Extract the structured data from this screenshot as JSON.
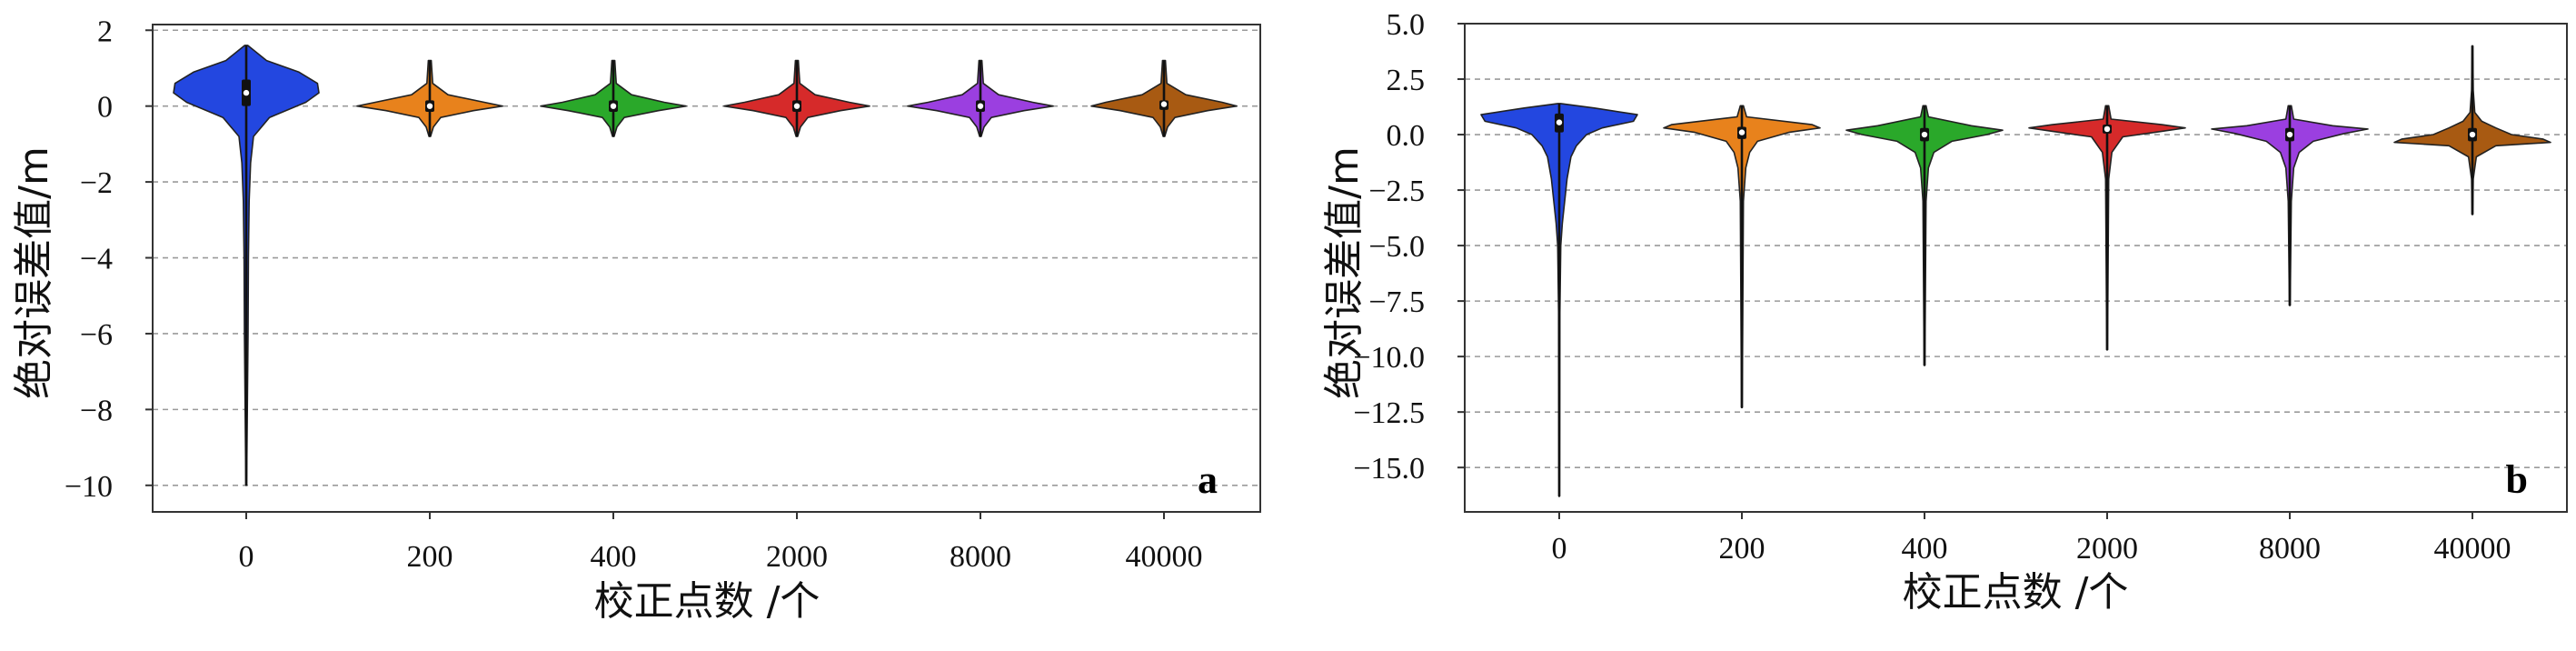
{
  "chart_data": [
    {
      "panel": "a",
      "type": "violin",
      "xlabel": "校正点数 /个",
      "ylabel": "绝对误差值/m",
      "ylim": [
        -10.7,
        2.15
      ],
      "yticks": [
        2,
        0,
        -2,
        -4,
        -6,
        -8,
        -10
      ],
      "ytick_labels": [
        "2",
        "0",
        "−2",
        "−4",
        "−6",
        "−8",
        "−10"
      ],
      "grid": "y, dashed",
      "categories": [
        "0",
        "200",
        "400",
        "2000",
        "8000",
        "40000"
      ],
      "series": [
        {
          "name": "0",
          "color": "#2347e0",
          "min": -10.0,
          "max": 1.6,
          "q1": 0.0,
          "median": 0.35,
          "q3": 0.7,
          "density": [
            [
              1.6,
              0.02
            ],
            [
              1.2,
              0.28
            ],
            [
              0.9,
              0.72
            ],
            [
              0.6,
              0.98
            ],
            [
              0.35,
              1.0
            ],
            [
              0.1,
              0.82
            ],
            [
              -0.3,
              0.32
            ],
            [
              -0.8,
              0.1
            ],
            [
              -1.5,
              0.06
            ],
            [
              -2.5,
              0.04
            ],
            [
              -4.0,
              0.03
            ],
            [
              -6.0,
              0.025
            ],
            [
              -8.0,
              0.015
            ],
            [
              -10.0,
              0.005
            ]
          ]
        },
        {
          "name": "200",
          "color": "#e8821c",
          "min": -0.8,
          "max": 1.2,
          "q1": -0.15,
          "median": 0.0,
          "q3": 0.15,
          "density": [
            [
              1.2,
              0.02
            ],
            [
              0.6,
              0.04
            ],
            [
              0.3,
              0.25
            ],
            [
              0.1,
              0.75
            ],
            [
              0.0,
              1.0
            ],
            [
              -0.12,
              0.6
            ],
            [
              -0.3,
              0.15
            ],
            [
              -0.55,
              0.05
            ],
            [
              -0.8,
              0.01
            ]
          ]
        },
        {
          "name": "400",
          "color": "#2aa82a",
          "min": -0.8,
          "max": 1.2,
          "q1": -0.15,
          "median": 0.0,
          "q3": 0.15,
          "density": [
            [
              1.2,
              0.02
            ],
            [
              0.6,
              0.04
            ],
            [
              0.3,
              0.25
            ],
            [
              0.1,
              0.7
            ],
            [
              0.0,
              1.0
            ],
            [
              -0.12,
              0.62
            ],
            [
              -0.3,
              0.15
            ],
            [
              -0.55,
              0.05
            ],
            [
              -0.8,
              0.01
            ]
          ]
        },
        {
          "name": "2000",
          "color": "#d62a2a",
          "min": -0.8,
          "max": 1.2,
          "q1": -0.15,
          "median": 0.0,
          "q3": 0.15,
          "density": [
            [
              1.2,
              0.02
            ],
            [
              0.6,
              0.04
            ],
            [
              0.3,
              0.25
            ],
            [
              0.1,
              0.72
            ],
            [
              0.0,
              1.0
            ],
            [
              -0.12,
              0.6
            ],
            [
              -0.3,
              0.15
            ],
            [
              -0.55,
              0.05
            ],
            [
              -0.8,
              0.01
            ]
          ]
        },
        {
          "name": "8000",
          "color": "#9b3fe0",
          "min": -0.8,
          "max": 1.2,
          "q1": -0.15,
          "median": 0.0,
          "q3": 0.15,
          "density": [
            [
              1.2,
              0.02
            ],
            [
              0.6,
              0.04
            ],
            [
              0.3,
              0.25
            ],
            [
              0.1,
              0.72
            ],
            [
              0.0,
              1.0
            ],
            [
              -0.12,
              0.6
            ],
            [
              -0.3,
              0.15
            ],
            [
              -0.55,
              0.05
            ],
            [
              -0.8,
              0.01
            ]
          ]
        },
        {
          "name": "40000",
          "color": "#a85a12",
          "min": -0.8,
          "max": 1.2,
          "q1": -0.1,
          "median": 0.05,
          "q3": 0.15,
          "density": [
            [
              1.2,
              0.02
            ],
            [
              0.6,
              0.04
            ],
            [
              0.3,
              0.3
            ],
            [
              0.1,
              0.8
            ],
            [
              0.0,
              1.0
            ],
            [
              -0.12,
              0.6
            ],
            [
              -0.3,
              0.15
            ],
            [
              -0.55,
              0.05
            ],
            [
              -0.8,
              0.01
            ]
          ]
        }
      ]
    },
    {
      "panel": "b",
      "type": "violin",
      "xlabel": "校正点数 /个",
      "ylabel": "绝对误差值/m",
      "ylim": [
        -17.0,
        5.0
      ],
      "yticks": [
        5.0,
        2.5,
        0.0,
        -2.5,
        -5.0,
        -7.5,
        -10.0,
        -12.5,
        -15.0
      ],
      "ytick_labels": [
        "5.0",
        "2.5",
        "0.0",
        "−2.5",
        "−5.0",
        "−7.5",
        "−10.0",
        "−12.5",
        "−15.0"
      ],
      "grid": "y, dashed",
      "categories": [
        "0",
        "200",
        "400",
        "2000",
        "8000",
        "40000"
      ],
      "series": [
        {
          "name": "0",
          "color": "#2347e0",
          "min": -16.3,
          "max": 1.4,
          "q1": 0.1,
          "median": 0.55,
          "q3": 0.95,
          "density": [
            [
              1.4,
              0.02
            ],
            [
              1.2,
              0.45
            ],
            [
              0.9,
              1.0
            ],
            [
              0.6,
              0.95
            ],
            [
              0.3,
              0.55
            ],
            [
              0.0,
              0.35
            ],
            [
              -0.5,
              0.22
            ],
            [
              -1.0,
              0.15
            ],
            [
              -2.0,
              0.1
            ],
            [
              -3.0,
              0.07
            ],
            [
              -4.0,
              0.04
            ],
            [
              -5.0,
              0.02
            ],
            [
              -8.0,
              0.008
            ],
            [
              -16.3,
              0.003
            ]
          ]
        },
        {
          "name": "200",
          "color": "#e8821c",
          "min": -12.3,
          "max": 1.3,
          "q1": -0.2,
          "median": 0.1,
          "q3": 0.35,
          "density": [
            [
              1.3,
              0.02
            ],
            [
              0.8,
              0.06
            ],
            [
              0.45,
              0.9
            ],
            [
              0.3,
              1.0
            ],
            [
              0.1,
              0.6
            ],
            [
              -0.3,
              0.2
            ],
            [
              -0.8,
              0.1
            ],
            [
              -1.5,
              0.05
            ],
            [
              -3.0,
              0.02
            ],
            [
              -12.3,
              0.005
            ]
          ]
        },
        {
          "name": "400",
          "color": "#2aa82a",
          "min": -10.4,
          "max": 1.3,
          "q1": -0.3,
          "median": 0.0,
          "q3": 0.3,
          "density": [
            [
              1.3,
              0.02
            ],
            [
              0.8,
              0.05
            ],
            [
              0.4,
              0.6
            ],
            [
              0.2,
              1.0
            ],
            [
              0.0,
              0.8
            ],
            [
              -0.3,
              0.35
            ],
            [
              -0.8,
              0.12
            ],
            [
              -1.5,
              0.05
            ],
            [
              -3.0,
              0.02
            ],
            [
              -10.4,
              0.005
            ]
          ]
        },
        {
          "name": "2000",
          "color": "#d62a2a",
          "min": -9.7,
          "max": 1.3,
          "q1": 0.05,
          "median": 0.25,
          "q3": 0.45,
          "density": [
            [
              1.3,
              0.02
            ],
            [
              0.7,
              0.05
            ],
            [
              0.45,
              0.7
            ],
            [
              0.3,
              1.0
            ],
            [
              0.15,
              0.7
            ],
            [
              -0.1,
              0.2
            ],
            [
              -0.8,
              0.06
            ],
            [
              -2.0,
              0.02
            ],
            [
              -9.7,
              0.005
            ]
          ]
        },
        {
          "name": "8000",
          "color": "#9b3fe0",
          "min": -7.7,
          "max": 1.3,
          "q1": -0.3,
          "median": 0.0,
          "q3": 0.3,
          "density": [
            [
              1.3,
              0.02
            ],
            [
              0.7,
              0.05
            ],
            [
              0.4,
              0.55
            ],
            [
              0.25,
              1.0
            ],
            [
              0.05,
              0.7
            ],
            [
              -0.3,
              0.3
            ],
            [
              -0.8,
              0.12
            ],
            [
              -1.5,
              0.05
            ],
            [
              -3.0,
              0.02
            ],
            [
              -7.7,
              0.005
            ]
          ]
        },
        {
          "name": "40000",
          "color": "#a85a12",
          "min": -3.6,
          "max": 4.0,
          "q1": -0.3,
          "median": 0.0,
          "q3": 0.3,
          "density": [
            [
              4.0,
              0.005
            ],
            [
              2.0,
              0.01
            ],
            [
              1.0,
              0.03
            ],
            [
              0.6,
              0.12
            ],
            [
              0.3,
              0.3
            ],
            [
              0.0,
              0.5
            ],
            [
              -0.2,
              0.9
            ],
            [
              -0.35,
              1.0
            ],
            [
              -0.5,
              0.3
            ],
            [
              -1.0,
              0.05
            ],
            [
              -2.0,
              0.01
            ],
            [
              -3.6,
              0.005
            ]
          ]
        }
      ]
    }
  ]
}
